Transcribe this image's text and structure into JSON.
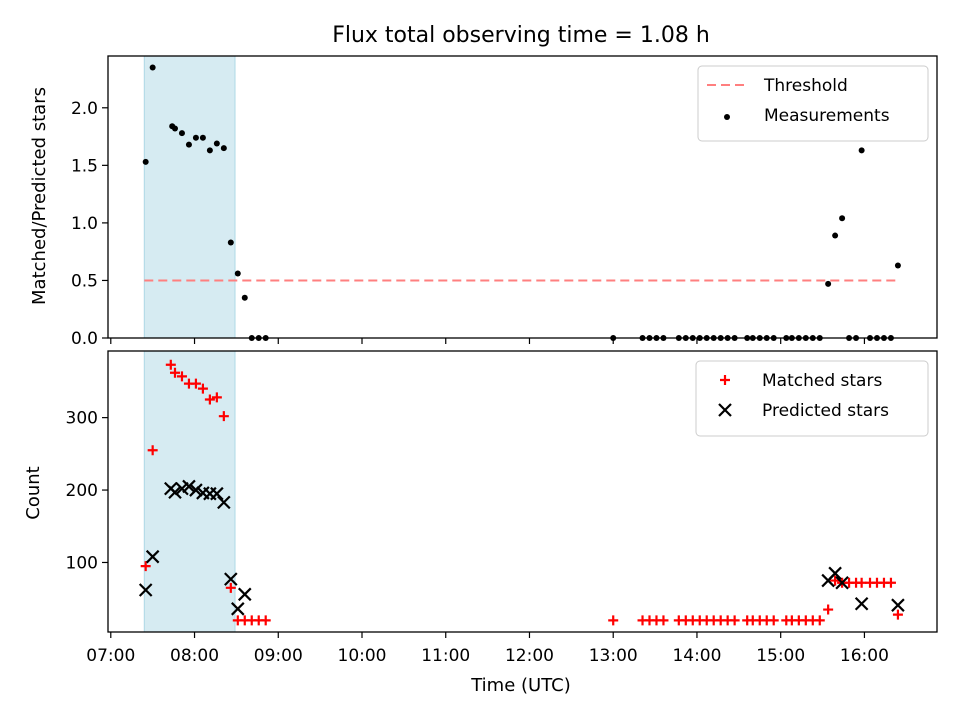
{
  "chart_data": [
    {
      "type": "scatter",
      "title": "Flux total observing time = 1.08 h",
      "xlabel": "",
      "ylabel": "Matched/Predicted stars",
      "xlim": [
        "06:58",
        "16:52"
      ],
      "ylim": [
        0.0,
        2.45
      ],
      "yticks": [
        0.0,
        0.5,
        1.0,
        1.5,
        2.0
      ],
      "ytick_labels": [
        "0.0",
        "0.5",
        "1.0",
        "1.5",
        "2.0"
      ],
      "legend_position": "top-right",
      "shaded_span": {
        "start": "07:24",
        "end": "08:29",
        "color": "#add8e6"
      },
      "threshold": {
        "name": "Threshold",
        "value": 0.5,
        "start": "07:24",
        "end": "16:25",
        "color": "#ff7f7f"
      },
      "series": [
        {
          "name": "Measurements",
          "color": "#000000",
          "points": [
            [
              "07:25",
              1.53
            ],
            [
              "07:30",
              2.35
            ],
            [
              "07:44",
              1.84
            ],
            [
              "07:46",
              1.82
            ],
            [
              "07:51",
              1.78
            ],
            [
              "07:56",
              1.68
            ],
            [
              "08:01",
              1.74
            ],
            [
              "08:06",
              1.74
            ],
            [
              "08:11",
              1.63
            ],
            [
              "08:16",
              1.69
            ],
            [
              "08:21",
              1.65
            ],
            [
              "08:26",
              0.83
            ],
            [
              "08:31",
              0.56
            ],
            [
              "08:36",
              0.35
            ],
            [
              "08:41",
              0.0
            ],
            [
              "08:46",
              0.0
            ],
            [
              "08:51",
              0.0
            ],
            [
              "13:00",
              0.0
            ],
            [
              "13:21",
              0.0
            ],
            [
              "13:26",
              0.0
            ],
            [
              "13:31",
              0.0
            ],
            [
              "13:36",
              0.0
            ],
            [
              "13:47",
              0.0
            ],
            [
              "13:52",
              0.0
            ],
            [
              "13:57",
              0.0
            ],
            [
              "14:02",
              0.0
            ],
            [
              "14:07",
              0.0
            ],
            [
              "14:12",
              0.0
            ],
            [
              "14:17",
              0.0
            ],
            [
              "14:22",
              0.0
            ],
            [
              "14:27",
              0.0
            ],
            [
              "14:36",
              0.0
            ],
            [
              "14:40",
              0.0
            ],
            [
              "14:45",
              0.0
            ],
            [
              "14:50",
              0.0
            ],
            [
              "14:55",
              0.0
            ],
            [
              "15:04",
              0.0
            ],
            [
              "15:08",
              0.0
            ],
            [
              "15:13",
              0.0
            ],
            [
              "15:18",
              0.0
            ],
            [
              "15:23",
              0.0
            ],
            [
              "15:28",
              0.0
            ],
            [
              "15:34",
              0.47
            ],
            [
              "15:39",
              0.89
            ],
            [
              "15:44",
              1.04
            ],
            [
              "15:49",
              0.0
            ],
            [
              "15:54",
              0.0
            ],
            [
              "15:58",
              1.63
            ],
            [
              "16:04",
              0.0
            ],
            [
              "16:09",
              0.0
            ],
            [
              "16:14",
              0.0
            ],
            [
              "16:19",
              0.0
            ],
            [
              "16:24",
              0.63
            ]
          ]
        }
      ]
    },
    {
      "type": "scatter",
      "title": "",
      "xlabel": "Time (UTC)",
      "ylabel": "Count",
      "xlim": [
        "06:58",
        "16:52"
      ],
      "ylim": [
        4,
        392
      ],
      "yticks": [
        100,
        200,
        300
      ],
      "ytick_labels": [
        "100",
        "200",
        "300"
      ],
      "xticks": [
        "07:00",
        "08:00",
        "09:00",
        "10:00",
        "11:00",
        "12:00",
        "13:00",
        "14:00",
        "15:00",
        "16:00"
      ],
      "xtick_labels": [
        "07:00",
        "08:00",
        "09:00",
        "10:00",
        "11:00",
        "12:00",
        "13:00",
        "14:00",
        "15:00",
        "16:00"
      ],
      "legend_position": "top-right",
      "shaded_span": {
        "start": "07:24",
        "end": "08:29",
        "color": "#add8e6"
      },
      "series": [
        {
          "name": "Matched stars",
          "marker": "plus",
          "color": "#ff0000",
          "points": [
            [
              "07:25",
              95
            ],
            [
              "07:30",
              255
            ],
            [
              "07:43",
              373
            ],
            [
              "07:46",
              362
            ],
            [
              "07:51",
              357
            ],
            [
              "07:56",
              347
            ],
            [
              "08:01",
              347
            ],
            [
              "08:06",
              340
            ],
            [
              "08:11",
              325
            ],
            [
              "08:16",
              328
            ],
            [
              "08:21",
              302
            ],
            [
              "08:26",
              65
            ],
            [
              "08:31",
              20
            ],
            [
              "08:36",
              20
            ],
            [
              "08:41",
              20
            ],
            [
              "08:46",
              20
            ],
            [
              "08:51",
              20
            ],
            [
              "13:00",
              20
            ],
            [
              "13:21",
              20
            ],
            [
              "13:26",
              20
            ],
            [
              "13:31",
              20
            ],
            [
              "13:36",
              20
            ],
            [
              "13:47",
              20
            ],
            [
              "13:52",
              20
            ],
            [
              "13:57",
              20
            ],
            [
              "14:02",
              20
            ],
            [
              "14:07",
              20
            ],
            [
              "14:12",
              20
            ],
            [
              "14:17",
              20
            ],
            [
              "14:22",
              20
            ],
            [
              "14:27",
              20
            ],
            [
              "14:36",
              20
            ],
            [
              "14:40",
              20
            ],
            [
              "14:45",
              20
            ],
            [
              "14:50",
              20
            ],
            [
              "14:55",
              20
            ],
            [
              "15:04",
              20
            ],
            [
              "15:08",
              20
            ],
            [
              "15:13",
              20
            ],
            [
              "15:18",
              20
            ],
            [
              "15:23",
              20
            ],
            [
              "15:28",
              20
            ],
            [
              "15:34",
              35
            ],
            [
              "15:39",
              75
            ],
            [
              "15:44",
              72
            ],
            [
              "15:49",
              72
            ],
            [
              "15:54",
              72
            ],
            [
              "15:58",
              72
            ],
            [
              "16:04",
              72
            ],
            [
              "16:09",
              72
            ],
            [
              "16:14",
              72
            ],
            [
              "16:19",
              72
            ],
            [
              "16:24",
              28
            ]
          ]
        },
        {
          "name": "Predicted stars",
          "marker": "x",
          "color": "#000000",
          "points": [
            [
              "07:25",
              62
            ],
            [
              "07:30",
              108
            ],
            [
              "07:43",
              202
            ],
            [
              "07:46",
              197
            ],
            [
              "07:51",
              202
            ],
            [
              "07:56",
              205
            ],
            [
              "08:01",
              200
            ],
            [
              "08:06",
              196
            ],
            [
              "08:11",
              195
            ],
            [
              "08:16",
              195
            ],
            [
              "08:21",
              183
            ],
            [
              "08:26",
              77
            ],
            [
              "08:31",
              36
            ],
            [
              "08:36",
              56
            ],
            [
              "15:34",
              75
            ],
            [
              "15:39",
              85
            ],
            [
              "15:44",
              72
            ],
            [
              "15:58",
              43
            ],
            [
              "16:24",
              41
            ]
          ]
        }
      ]
    }
  ]
}
